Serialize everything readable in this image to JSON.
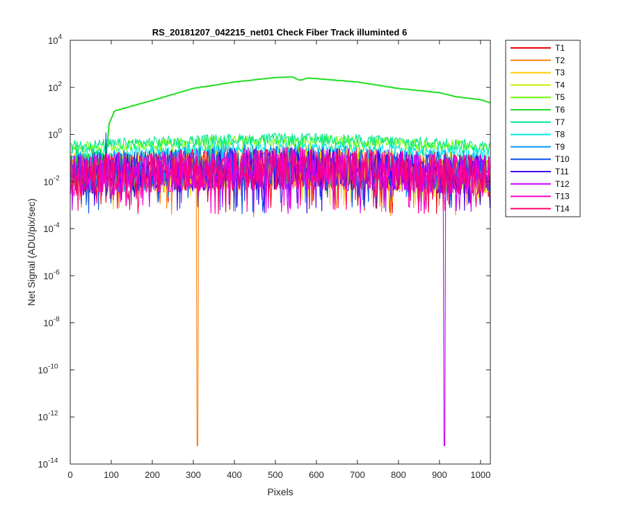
{
  "chart_data": {
    "type": "line",
    "title": "RS_20181207_042215_net01    Check Fiber      Track illuminted 6",
    "xlabel": "Pixels",
    "ylabel": "Net Signal (ADU/pix/sec)",
    "xlim": [
      0,
      1024
    ],
    "ylim_exponent": [
      -14,
      4
    ],
    "yscale": "log",
    "grid": false,
    "legend_position": "outside-top-right",
    "x_ticks": [
      0,
      100,
      200,
      300,
      400,
      500,
      600,
      700,
      800,
      900,
      1000
    ],
    "y_tick_exponents": [
      -14,
      -12,
      -10,
      -8,
      -6,
      -4,
      -2,
      0,
      2,
      4
    ],
    "y_tick_base": "10",
    "series": [
      {
        "name": "T1",
        "color": "#e8000b",
        "level": 0.06,
        "spike_to": 0.0004
      },
      {
        "name": "T2",
        "color": "#ff7f0e",
        "level": 0.06,
        "spike_to": 0.0003,
        "deep_dip": {
          "x": 310,
          "y": 6e-14
        }
      },
      {
        "name": "T3",
        "color": "#ffcc00",
        "level": 0.07,
        "spike_to": 0.0006
      },
      {
        "name": "T4",
        "color": "#c8f000",
        "level": 0.08,
        "spike_to": 0.001
      },
      {
        "name": "T5",
        "color": "#66ff00",
        "level": 0.5,
        "spike_to": 0.1
      },
      {
        "name": "T6",
        "color": "#22dd22",
        "level": 250,
        "profile": [
          [
            88,
            0.15
          ],
          [
            95,
            3
          ],
          [
            108,
            10
          ],
          [
            200,
            28
          ],
          [
            300,
            90
          ],
          [
            400,
            170
          ],
          [
            500,
            260
          ],
          [
            540,
            280
          ],
          [
            560,
            200
          ],
          [
            580,
            250
          ],
          [
            700,
            170
          ],
          [
            800,
            90
          ],
          [
            900,
            60
          ],
          [
            940,
            40
          ],
          [
            1000,
            30
          ],
          [
            1024,
            22
          ]
        ]
      },
      {
        "name": "T7",
        "color": "#00e890",
        "level": 0.6,
        "spike_to": 0.1
      },
      {
        "name": "T8",
        "color": "#00eaea",
        "level": 0.25,
        "spike_to": 0.03
      },
      {
        "name": "T9",
        "color": "#0096ff",
        "level": 0.08,
        "spike_to": 0.001
      },
      {
        "name": "T10",
        "color": "#0050e6",
        "level": 0.07,
        "spike_to": 0.0004,
        "spike": {
          "x": 87,
          "y": 1.2
        }
      },
      {
        "name": "T11",
        "color": "#3c00f0",
        "level": 0.06,
        "spike_to": 0.0004
      },
      {
        "name": "T12",
        "color": "#c800ff",
        "level": 0.06,
        "spike_to": 0.0004,
        "deep_dip": {
          "x": 912,
          "y": 6e-14
        }
      },
      {
        "name": "T13",
        "color": "#ff00c8",
        "level": 0.06,
        "spike_to": 0.0004
      },
      {
        "name": "T14",
        "color": "#ff006e",
        "level": 0.06,
        "spike_to": 0.0004
      }
    ]
  }
}
